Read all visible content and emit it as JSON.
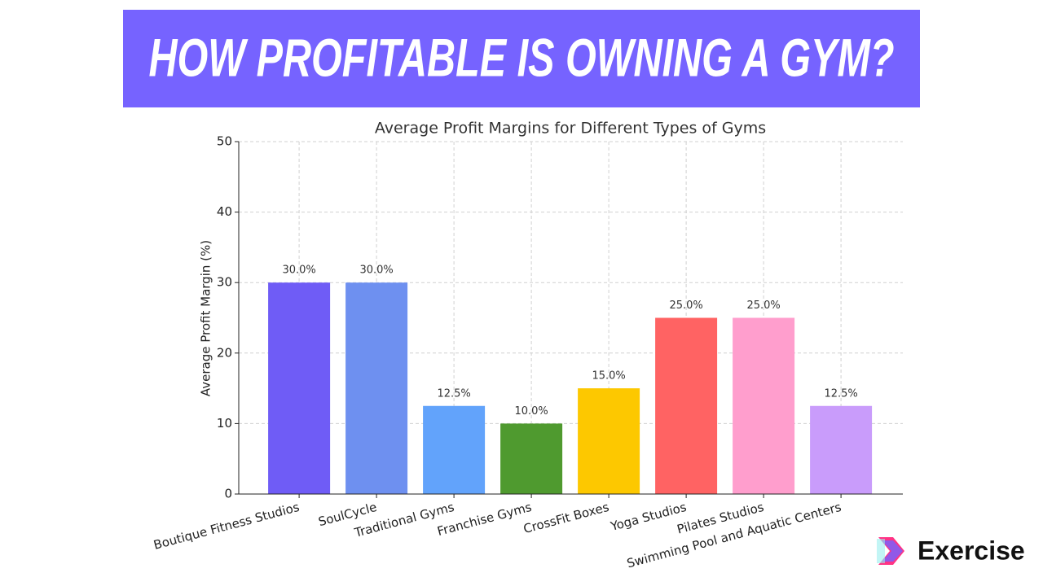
{
  "banner": {
    "title": "HOW PROFITABLE IS OWNING A GYM?"
  },
  "brand": {
    "name": "Exercise"
  },
  "chart_data": {
    "type": "bar",
    "title": "Average Profit Margins for Different Types of Gyms",
    "y_label": "Average Profit Margin (%)",
    "categories": [
      "Boutique Fitness Studios",
      "SoulCycle",
      "Traditional Gyms",
      "Franchise Gyms",
      "CrossFit Boxes",
      "Yoga Studios",
      "Pilates Studios",
      "Swimming Pool and Aquatic Centers"
    ],
    "values": [
      30,
      30,
      12.5,
      10,
      15,
      25,
      25,
      12.5
    ],
    "value_labels": [
      "30.0%",
      "30.0%",
      "12.5%",
      "10.0%",
      "15.0%",
      "25.0%",
      "25.0%",
      "12.5%"
    ],
    "colors": [
      "#6f5cf6",
      "#6e90f0",
      "#62a3fb",
      "#4f9a2f",
      "#fdc800",
      "#ff6363",
      "#ff9ecd",
      "#c99cfb"
    ],
    "ylim": [
      0,
      50
    ],
    "yticks": [
      0,
      10,
      20,
      30,
      40,
      50
    ],
    "grid": true
  }
}
